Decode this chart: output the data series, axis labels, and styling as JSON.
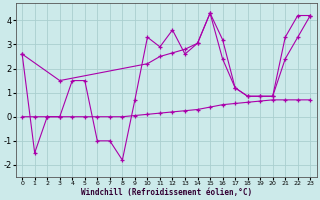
{
  "xlabel": "Windchill (Refroidissement éolien,°C)",
  "xlim": [
    -0.5,
    23.5
  ],
  "ylim": [
    -2.5,
    4.7
  ],
  "xticks": [
    0,
    1,
    2,
    3,
    4,
    5,
    6,
    7,
    8,
    9,
    10,
    11,
    12,
    13,
    14,
    15,
    16,
    17,
    18,
    19,
    20,
    21,
    22,
    23
  ],
  "yticks": [
    -2,
    -1,
    0,
    1,
    2,
    3,
    4
  ],
  "bg_color": "#cceaea",
  "grid_color": "#aacfcf",
  "line_color": "#aa00aa",
  "line1_x": [
    0,
    1,
    2,
    3,
    4,
    5,
    6,
    7,
    8,
    9,
    10,
    11,
    12,
    13,
    14,
    15,
    16,
    17,
    18,
    19,
    20,
    21,
    22,
    23
  ],
  "line1_y": [
    2.6,
    -1.5,
    0.0,
    0.0,
    1.5,
    1.5,
    -1.0,
    -1.0,
    -1.8,
    0.7,
    3.3,
    2.9,
    3.6,
    2.6,
    3.05,
    4.3,
    2.4,
    1.2,
    0.85,
    0.85,
    0.85,
    3.3,
    4.2,
    4.2
  ],
  "line2_x": [
    0,
    1,
    2,
    3,
    4,
    5,
    6,
    7,
    8,
    9,
    10,
    11,
    12,
    13,
    14,
    15,
    16,
    17,
    18,
    19,
    20,
    21,
    22,
    23
  ],
  "line2_y": [
    0.0,
    0.0,
    0.0,
    0.0,
    0.0,
    0.0,
    0.0,
    0.0,
    0.0,
    0.05,
    0.1,
    0.15,
    0.2,
    0.25,
    0.3,
    0.4,
    0.5,
    0.55,
    0.6,
    0.65,
    0.7,
    0.7,
    0.7,
    0.7
  ],
  "line3_x": [
    0,
    3,
    10,
    11,
    12,
    13,
    14,
    15,
    16,
    17,
    18,
    19,
    20,
    21,
    22,
    23
  ],
  "line3_y": [
    2.6,
    1.5,
    2.2,
    2.5,
    2.65,
    2.8,
    3.05,
    4.3,
    3.2,
    1.2,
    0.85,
    0.85,
    0.85,
    2.4,
    3.3,
    4.2
  ]
}
